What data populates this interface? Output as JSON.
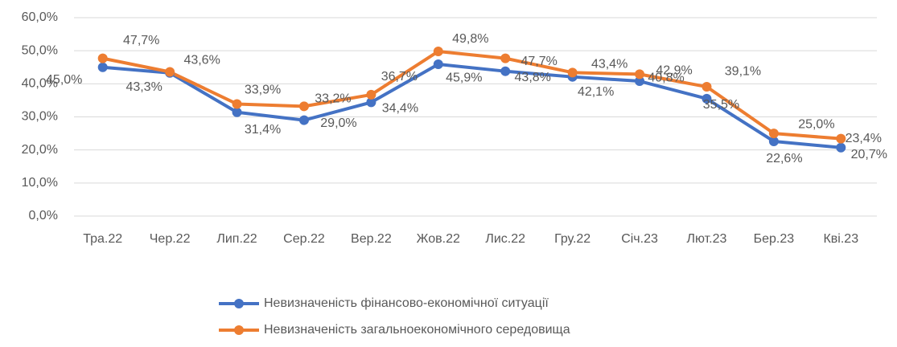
{
  "chart_data": {
    "type": "line",
    "categories": [
      "Тра.22",
      "Чер.22",
      "Лип.22",
      "Сер.22",
      "Вер.22",
      "Жов.22",
      "Лис.22",
      "Гру.22",
      "Січ.23",
      "Лют.23",
      "Бер.23",
      "Кві.23"
    ],
    "series": [
      {
        "name": "Невизначеність фінансово-економічної ситуації",
        "color": "#4472c4",
        "values": [
          45.0,
          43.3,
          31.4,
          29.0,
          34.4,
          45.9,
          43.8,
          42.1,
          40.8,
          35.5,
          22.6,
          20.7
        ],
        "value_labels": [
          "45,0%",
          "43,3%",
          "31,4%",
          "29,0%",
          "34,4%",
          "45,9%",
          "43,8%",
          "42,1%",
          "40,8%",
          "35,5%",
          "22,6%",
          "20,7%"
        ]
      },
      {
        "name": "Невизначеність загальноекономічного середовища",
        "color": "#ed7d31",
        "values": [
          47.7,
          43.6,
          33.9,
          33.2,
          36.7,
          49.8,
          47.7,
          43.4,
          42.9,
          39.1,
          25.0,
          23.4
        ],
        "value_labels": [
          "47,7%",
          "43,6%",
          "33,9%",
          "33,2%",
          "36,7%",
          "49,8%",
          "47,7%",
          "43,4%",
          "42,9%",
          "39,1%",
          "25,0%",
          "23,4%"
        ]
      }
    ],
    "ylim": [
      0,
      60
    ],
    "yticks": [
      {
        "value": 0,
        "label": "0,0%"
      },
      {
        "value": 10,
        "label": "10,0%"
      },
      {
        "value": 20,
        "label": "20,0%"
      },
      {
        "value": 30,
        "label": "30,0%"
      },
      {
        "value": 40,
        "label": "40,0%"
      },
      {
        "value": 50,
        "label": "50,0%"
      },
      {
        "value": 60,
        "label": "60,0%"
      }
    ],
    "grid": true,
    "legend": "bottom"
  }
}
